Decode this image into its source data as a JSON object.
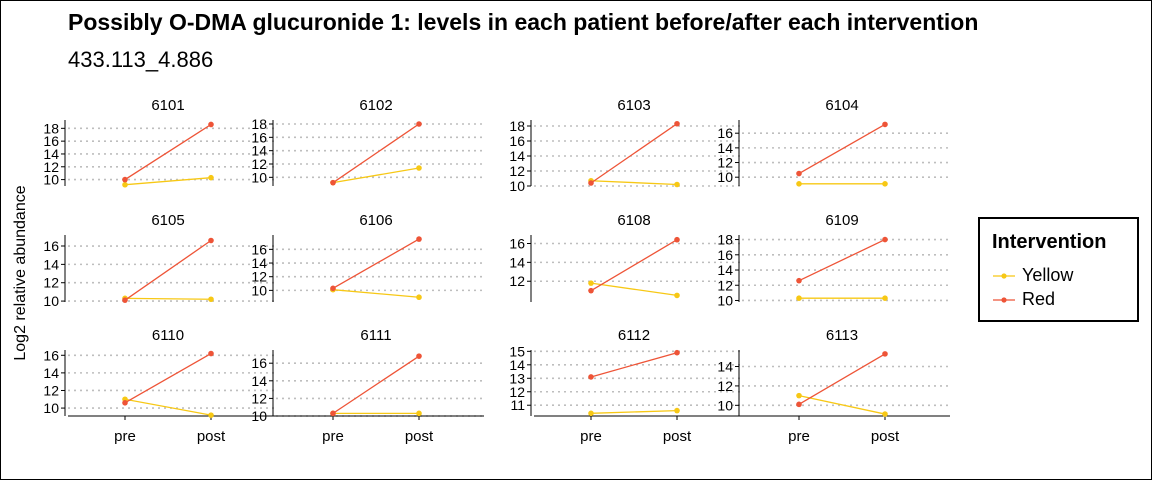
{
  "colors": {
    "yellow": "#F7C815",
    "red": "#EE5437",
    "grid": "#BEBEBE",
    "axis": "#000000"
  },
  "chart_data": {
    "type": "line",
    "title": "Possibly O-DMA glucuronide 1: levels in each patient before/after each intervention",
    "subtitle": "433.113_4.886",
    "ylabel": "Log2 relative abundance",
    "xlabel": "",
    "categories": [
      "pre",
      "post"
    ],
    "grid": "horizontal dotted",
    "legend": {
      "title": "Intervention",
      "position": "right",
      "entries": [
        {
          "name": "Yellow",
          "color": "#F7C815"
        },
        {
          "name": "Red",
          "color": "#EE5437"
        }
      ]
    },
    "panels": [
      {
        "id": "6101",
        "ylim": [
          9,
          19.3
        ],
        "yticks": [
          10,
          12,
          14,
          16,
          18
        ],
        "series": [
          {
            "name": "Yellow",
            "values": [
              9.2,
              10.3
            ]
          },
          {
            "name": "Red",
            "values": [
              10.0,
              18.6
            ]
          }
        ]
      },
      {
        "id": "6102",
        "ylim": [
          8.7,
          18.6
        ],
        "yticks": [
          10,
          12,
          14,
          16,
          18
        ],
        "series": [
          {
            "name": "Yellow",
            "values": [
              9.2,
              11.4
            ]
          },
          {
            "name": "Red",
            "values": [
              9.2,
              18.0
            ]
          }
        ]
      },
      {
        "id": "6103",
        "ylim": [
          10,
          18.8
        ],
        "yticks": [
          10,
          12,
          14,
          16,
          18
        ],
        "series": [
          {
            "name": "Yellow",
            "values": [
              10.7,
              10.2
            ]
          },
          {
            "name": "Red",
            "values": [
              10.4,
              18.3
            ]
          }
        ]
      },
      {
        "id": "6104",
        "ylim": [
          8.8,
          17.8
        ],
        "yticks": [
          10,
          12,
          14,
          16
        ],
        "series": [
          {
            "name": "Yellow",
            "values": [
              9.1,
              9.1
            ]
          },
          {
            "name": "Red",
            "values": [
              10.5,
              17.2
            ]
          }
        ]
      },
      {
        "id": "6105",
        "ylim": [
          9.9,
          17.2
        ],
        "yticks": [
          10,
          12,
          14,
          16
        ],
        "series": [
          {
            "name": "Yellow",
            "values": [
              10.3,
              10.2
            ]
          },
          {
            "name": "Red",
            "values": [
              10.1,
              16.6
            ]
          }
        ]
      },
      {
        "id": "6106",
        "ylim": [
          8.3,
          18.1
        ],
        "yticks": [
          10,
          12,
          14,
          16
        ],
        "series": [
          {
            "name": "Yellow",
            "values": [
              10.1,
              9.0
            ]
          },
          {
            "name": "Red",
            "values": [
              10.3,
              17.5
            ]
          }
        ]
      },
      {
        "id": "6108",
        "ylim": [
          9.8,
          16.9
        ],
        "yticks": [
          12,
          14,
          16
        ],
        "series": [
          {
            "name": "Yellow",
            "values": [
              11.8,
              10.5
            ]
          },
          {
            "name": "Red",
            "values": [
              11.0,
              16.4
            ]
          }
        ]
      },
      {
        "id": "6109",
        "ylim": [
          9.8,
          18.6
        ],
        "yticks": [
          10,
          12,
          14,
          16,
          18
        ],
        "series": [
          {
            "name": "Yellow",
            "values": [
              10.3,
              10.3
            ]
          },
          {
            "name": "Red",
            "values": [
              12.6,
              18.0
            ]
          }
        ]
      },
      {
        "id": "6110",
        "ylim": [
          9.1,
          16.6
        ],
        "yticks": [
          10,
          12,
          14,
          16
        ],
        "series": [
          {
            "name": "Yellow",
            "values": [
              11.0,
              9.2
            ]
          },
          {
            "name": "Red",
            "values": [
              10.6,
              16.2
            ]
          }
        ]
      },
      {
        "id": "6111",
        "ylim": [
          10,
          17.5
        ],
        "yticks": [
          10,
          12,
          14,
          16
        ],
        "series": [
          {
            "name": "Yellow",
            "values": [
              10.3,
              10.3
            ]
          },
          {
            "name": "Red",
            "values": [
              10.3,
              16.8
            ]
          }
        ]
      },
      {
        "id": "6112",
        "ylim": [
          10.2,
          15.1
        ],
        "yticks": [
          11,
          12,
          13,
          14,
          15
        ],
        "series": [
          {
            "name": "Yellow",
            "values": [
              10.4,
              10.6
            ]
          },
          {
            "name": "Red",
            "values": [
              13.1,
              14.9
            ]
          }
        ]
      },
      {
        "id": "6113",
        "ylim": [
          8.9,
          15.7
        ],
        "yticks": [
          10,
          12,
          14
        ],
        "series": [
          {
            "name": "Yellow",
            "values": [
              11.0,
              9.1
            ]
          },
          {
            "name": "Red",
            "values": [
              10.1,
              15.3
            ]
          }
        ]
      }
    ]
  }
}
